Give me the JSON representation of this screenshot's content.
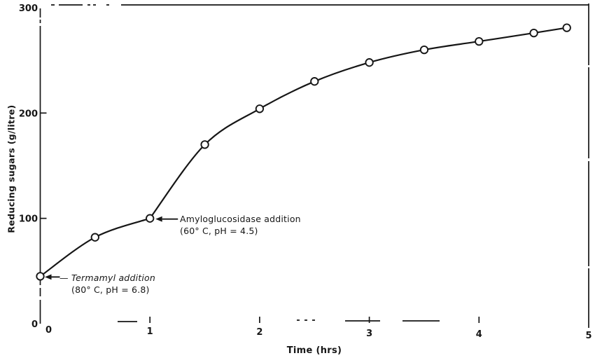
{
  "figure": {
    "background": "#ffffff",
    "ink_color": "#161616"
  },
  "chart_data": {
    "type": "line",
    "title": "",
    "xlabel": "Time (hrs)",
    "ylabel": "Reducing sugars (g/litre)",
    "xlim": [
      0,
      5
    ],
    "ylim": [
      0,
      300
    ],
    "x_ticks": [
      0,
      1,
      2,
      3,
      4,
      5
    ],
    "y_ticks": [
      0,
      100,
      200,
      300
    ],
    "grid": "off",
    "legend": "none",
    "marker": "open-circle",
    "series": [
      {
        "name": "Reducing sugars",
        "x": [
          0,
          0.5,
          1,
          1.5,
          2,
          2.5,
          3,
          3.5,
          4,
          4.5,
          4.8
        ],
        "y": [
          45,
          82,
          100,
          170,
          204,
          230,
          248,
          260,
          268,
          276,
          281
        ]
      }
    ],
    "kink_index": 2,
    "annotations": [
      {
        "label_line1": "— Termamyl addition",
        "label_line2": "(80° C, pH = 6.8)",
        "target": {
          "x": 0,
          "y": 45
        },
        "style": "italic"
      },
      {
        "label_line1": "Amyloglucosidase addition",
        "label_line2": "(60° C, pH = 4.5)",
        "target": {
          "x": 1,
          "y": 100
        },
        "style": "normal"
      }
    ]
  }
}
